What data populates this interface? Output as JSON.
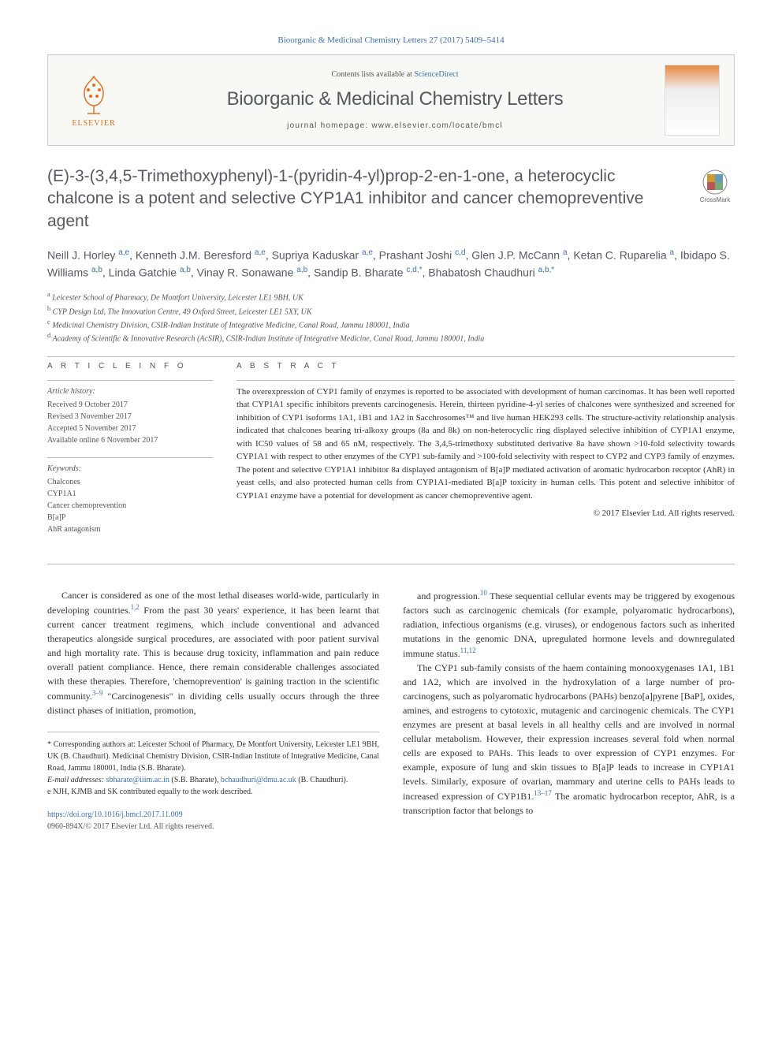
{
  "top_citation": "Bioorganic & Medicinal Chemistry Letters 27 (2017) 5409–5414",
  "header": {
    "publisher": "ELSEVIER",
    "contents_prefix": "Contents lists available at ",
    "contents_link": "ScienceDirect",
    "journal_title": "Bioorganic & Medicinal Chemistry Letters",
    "homepage_prefix": "journal homepage: ",
    "homepage_url": "www.elsevier.com/locate/bmcl"
  },
  "crossmark_label": "CrossMark",
  "title": "(E)-3-(3,4,5-Trimethoxyphenyl)-1-(pyridin-4-yl)prop-2-en-1-one, a heterocyclic chalcone is a potent and selective CYP1A1 inhibitor and cancer chemopreventive agent",
  "authors_html": "Neill J. Horley <sup>a,e</sup>, Kenneth J.M. Beresford <sup>a,e</sup>, Supriya Kaduskar <sup>a,e</sup>, Prashant Joshi <sup>c,d</sup>, Glen J.P. McCann <sup>a</sup>, Ketan C. Ruparelia <sup>a</sup>, Ibidapo S. Williams <sup>a,b</sup>, Linda Gatchie <sup>a,b</sup>, Vinay R. Sonawane <sup>a,b</sup>, Sandip B. Bharate <sup>c,d,*</sup>, Bhabatosh Chaudhuri <sup>a,b,*</sup>",
  "affiliations": [
    {
      "sup": "a",
      "text": "Leicester School of Pharmacy, De Montfort University, Leicester LE1 9BH, UK"
    },
    {
      "sup": "b",
      "text": "CYP Design Ltd, The Innovation Centre, 49 Oxford Street, Leicester LE1 5XY, UK"
    },
    {
      "sup": "c",
      "text": "Medicinal Chemistry Division, CSIR-Indian Institute of Integrative Medicine, Canal Road, Jammu 180001, India"
    },
    {
      "sup": "d",
      "text": "Academy of Scientific & Innovative Research (AcSIR), CSIR-Indian Institute of Integrative Medicine, Canal Road, Jammu 180001, India"
    }
  ],
  "info": {
    "heading": "A R T I C L E   I N F O",
    "history_label": "Article history:",
    "history": [
      "Received 9 October 2017",
      "Revised 3 November 2017",
      "Accepted 5 November 2017",
      "Available online 6 November 2017"
    ],
    "keywords_label": "Keywords:",
    "keywords": [
      "Chalcones",
      "CYP1A1",
      "Cancer chemoprevention",
      "B[a]P",
      "AhR antagonism"
    ]
  },
  "abstract": {
    "heading": "A B S T R A C T",
    "text": "The overexpression of CYP1 family of enzymes is reported to be associated with development of human carcinomas. It has been well reported that CYP1A1 specific inhibitors prevents carcinogenesis. Herein, thirteen pyridine-4-yl series of chalcones were synthesized and screened for inhibition of CYP1 isoforms 1A1, 1B1 and 1A2 in Sacchrosomes™ and live human HEK293 cells. The structure-activity relationship analysis indicated that chalcones bearing tri-alkoxy groups (8a and 8k) on non-heterocyclic ring displayed selective inhibition of CYP1A1 enzyme, with IC50 values of 58 and 65 nM, respectively. The 3,4,5-trimethoxy substituted derivative 8a have shown >10-fold selectivity towards CYP1A1 with respect to other enzymes of the CYP1 sub-family and >100-fold selectivity with respect to CYP2 and CYP3 family of enzymes. The potent and selective CYP1A1 inhibitor 8a displayed antagonism of B[a]P mediated activation of aromatic hydrocarbon receptor (AhR) in yeast cells, and also protected human cells from CYP1A1-mediated B[a]P toxicity in human cells. This potent and selective inhibitor of CYP1A1 enzyme have a potential for development as cancer chemopreventive agent.",
    "copyright": "© 2017 Elsevier Ltd. All rights reserved."
  },
  "body": {
    "col1_p1": "Cancer is considered as one of the most lethal diseases world-wide, particularly in developing countries.1,2 From the past 30 years' experience, it has been learnt that current cancer treatment regimens, which include conventional and advanced therapeutics alongside surgical procedures, are associated with poor patient survival and high mortality rate. This is because drug toxicity, inflammation and pain reduce overall patient compliance. Hence, there remain considerable challenges associated with these therapies. Therefore, 'chemoprevention' is gaining traction in the scientific community.3–9 \"Carcinogenesis\" in dividing cells usually occurs through the three distinct phases of initiation, promotion,",
    "col2_p1": "and progression.10 These sequential cellular events may be triggered by exogenous factors such as carcinogenic chemicals (for example, polyaromatic hydrocarbons), radiation, infectious organisms (e.g. viruses), or endogenous factors such as inherited mutations in the genomic DNA, upregulated hormone levels and downregulated immune status.11,12",
    "col2_p2": "The CYP1 sub-family consists of the haem containing monooxygenases 1A1, 1B1 and 1A2, which are involved in the hydroxylation of a large number of pro-carcinogens, such as polyaromatic hydrocarbons (PAHs) benzo[a]pyrene [BaP], oxides, amines, and estrogens to cytotoxic, mutagenic and carcinogenic chemicals. The CYP1 enzymes are present at basal levels in all healthy cells and are involved in normal cellular metabolism. However, their expression increases several fold when normal cells are exposed to PAHs. This leads to over expression of CYP1 enzymes. For example, exposure of lung and skin tissues to B[a]P leads to increase in CYP1A1 levels. Similarly, exposure of ovarian, mammary and uterine cells to PAHs leads to increased expression of CYP1B1.13–17 The aromatic hydrocarbon receptor, AhR, is a transcription factor that belongs to"
  },
  "footnotes": {
    "corr": "* Corresponding authors at: Leicester School of Pharmacy, De Montfort University, Leicester LE1 9BH, UK (B. Chaudhuri). Medicinal Chemistry Division, CSIR-Indian Institute of Integrative Medicine, Canal Road, Jammu 180001, India (S.B. Bharate).",
    "email_label": "E-mail addresses:",
    "email1": "sbharate@iiim.ac.in",
    "email1_who": " (S.B. Bharate), ",
    "email2": "bchaudhuri@dmu.ac.uk",
    "email2_who": " (B. Chaudhuri).",
    "equal": "e NJH, KJMB and SK contributed equally to the work described.",
    "doi": "https://doi.org/10.1016/j.bmcl.2017.11.009",
    "doi_copy": "0960-894X/© 2017 Elsevier Ltd. All rights reserved."
  },
  "colors": {
    "link": "#3b6fb6",
    "heading_gray": "#545a5f",
    "orange": "#e3701e"
  }
}
